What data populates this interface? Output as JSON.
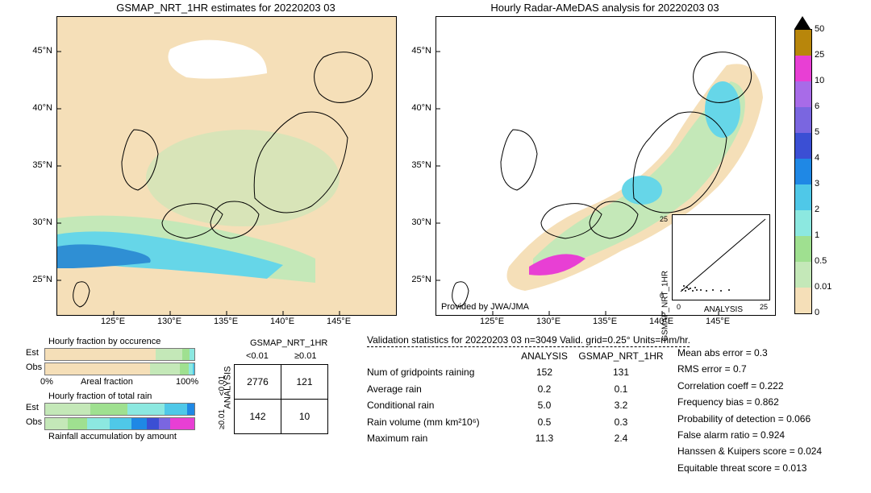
{
  "left_map": {
    "title": "GSMAP_NRT_1HR estimates for 20220203 03",
    "background_color": "#f5dfb8",
    "x_ticks": [
      "125°E",
      "130°E",
      "135°E",
      "140°E",
      "145°E"
    ],
    "y_ticks": [
      "45°N",
      "40°N",
      "35°N",
      "30°N",
      "25°N"
    ],
    "xlim": [
      120,
      150
    ],
    "ylim": [
      22,
      48
    ],
    "precip_band_color_light": "#c4e8b8",
    "precip_band_color_mid": "#66d6e8",
    "precip_band_color_dark": "#2f8fd4",
    "white_patch_color": "#ffffff"
  },
  "right_map": {
    "title": "Hourly Radar-AMeDAS analysis for 20220203 03",
    "background_color": "#ffffff",
    "x_ticks": [
      "125°E",
      "130°E",
      "135°E",
      "140°E",
      "145°E"
    ],
    "y_ticks": [
      "45°N",
      "40°N",
      "35°N",
      "30°N",
      "25°N"
    ],
    "footer": "Provided by JWA/JMA",
    "tan_color": "#f5dfb8",
    "green_color": "#c4e8b8",
    "cyan_color": "#66d6e8",
    "magenta_color": "#e83fd4"
  },
  "scatter": {
    "xlabel": "ANALYSIS",
    "ylabel": "GSMAP_NRT_1HR",
    "xlim": [
      -1,
      25
    ],
    "ylim": [
      -1,
      25
    ],
    "ticks": [
      0,
      25
    ],
    "point_color": "#000000"
  },
  "colorbar": {
    "labels": [
      "50",
      "25",
      "10",
      "6",
      "5",
      "4",
      "3",
      "2",
      "1",
      "0.5",
      "0.01",
      "0"
    ],
    "colors": [
      "#b8860b",
      "#e83fd4",
      "#a86be8",
      "#7a66e0",
      "#3b4fd4",
      "#1f88e5",
      "#4fc8e8",
      "#8ce8e0",
      "#9fe090",
      "#c4e8b8",
      "#f5dfb8"
    ],
    "arrow_top_color": "#000000"
  },
  "occ_bars": {
    "title": "Hourly fraction by occurence",
    "row_labels": [
      "Est",
      "Obs"
    ],
    "axis_label": "Areal fraction",
    "axis_ticks": [
      "0%",
      "100%"
    ],
    "est_segments": [
      {
        "w": 74,
        "c": "#f5dfb8"
      },
      {
        "w": 18,
        "c": "#c4e8b8"
      },
      {
        "w": 5,
        "c": "#9fe090"
      },
      {
        "w": 3,
        "c": "#8ce8e0"
      }
    ],
    "obs_segments": [
      {
        "w": 70,
        "c": "#f5dfb8"
      },
      {
        "w": 20,
        "c": "#c4e8b8"
      },
      {
        "w": 6,
        "c": "#9fe090"
      },
      {
        "w": 3,
        "c": "#8ce8e0"
      },
      {
        "w": 1,
        "c": "#4fc8e8"
      }
    ]
  },
  "rain_bars": {
    "title": "Hourly fraction of total rain",
    "row_labels": [
      "Est",
      "Obs"
    ],
    "footer": "Rainfall accumulation by amount",
    "est_segments": [
      {
        "w": 30,
        "c": "#c4e8b8"
      },
      {
        "w": 25,
        "c": "#9fe090"
      },
      {
        "w": 25,
        "c": "#8ce8e0"
      },
      {
        "w": 15,
        "c": "#4fc8e8"
      },
      {
        "w": 5,
        "c": "#1f88e5"
      }
    ],
    "obs_segments": [
      {
        "w": 15,
        "c": "#c4e8b8"
      },
      {
        "w": 13,
        "c": "#9fe090"
      },
      {
        "w": 15,
        "c": "#8ce8e0"
      },
      {
        "w": 15,
        "c": "#4fc8e8"
      },
      {
        "w": 10,
        "c": "#1f88e5"
      },
      {
        "w": 8,
        "c": "#3b4fd4"
      },
      {
        "w": 8,
        "c": "#7a66e0"
      },
      {
        "w": 16,
        "c": "#e83fd4"
      }
    ]
  },
  "contingency": {
    "col_header": "GSMAP_NRT_1HR",
    "row_header": "ANALYSIS",
    "col_labels": [
      "<0.01",
      "≥0.01"
    ],
    "row_labels": [
      "<0.01",
      "≥0.01"
    ],
    "cells": [
      [
        "2776",
        "121"
      ],
      [
        "142",
        "10"
      ]
    ]
  },
  "validation": {
    "title": "Validation statistics for 20220203 03  n=3049 Valid. grid=0.25°  Units=mm/hr.",
    "col_headers": [
      "ANALYSIS",
      "GSMAP_NRT_1HR"
    ],
    "rows": [
      {
        "label": "Num of gridpoints raining",
        "v1": "152",
        "v2": "131"
      },
      {
        "label": "Average rain",
        "v1": "0.2",
        "v2": "0.1"
      },
      {
        "label": "Conditional rain",
        "v1": "5.0",
        "v2": "3.2"
      },
      {
        "label": "Rain volume (mm km²10⁶)",
        "v1": "0.5",
        "v2": "0.3"
      },
      {
        "label": "Maximum rain",
        "v1": "11.3",
        "v2": "2.4"
      }
    ],
    "metrics": [
      {
        "label": "Mean abs error =",
        "v": "0.3"
      },
      {
        "label": "RMS error =",
        "v": "0.7"
      },
      {
        "label": "Correlation coeff =",
        "v": "0.222"
      },
      {
        "label": "Frequency bias =",
        "v": "0.862"
      },
      {
        "label": "Probability of detection =",
        "v": "0.066"
      },
      {
        "label": "False alarm ratio =",
        "v": "0.924"
      },
      {
        "label": "Hanssen & Kuipers score =",
        "v": "0.024"
      },
      {
        "label": "Equitable threat score =",
        "v": "0.013"
      }
    ]
  }
}
